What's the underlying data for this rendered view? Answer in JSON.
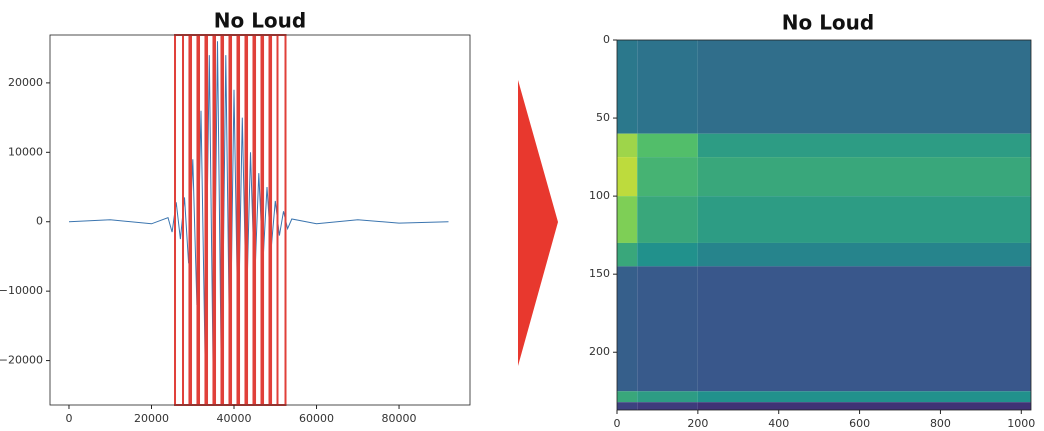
{
  "chart_data": [
    {
      "type": "line",
      "title": "No Loud",
      "x": [
        0,
        10000,
        20000,
        24000,
        25000,
        26000,
        27000,
        28000,
        29000,
        30000,
        31000,
        32000,
        33000,
        34000,
        35000,
        36000,
        37000,
        38000,
        39000,
        40000,
        41000,
        42000,
        43000,
        44000,
        45000,
        46000,
        47000,
        48000,
        49000,
        50000,
        51000,
        52000,
        53000,
        54000,
        60000,
        70000,
        80000,
        92000
      ],
      "values": [
        0,
        300,
        -300,
        600,
        -1500,
        2800,
        -2500,
        3500,
        -6000,
        9000,
        -12000,
        16000,
        -20000,
        24000,
        -25000,
        26000,
        -26000,
        24000,
        -22000,
        19000,
        -17000,
        15000,
        -13000,
        10000,
        -9000,
        7000,
        -6000,
        5000,
        -4000,
        3000,
        -2000,
        1500,
        -1000,
        400,
        -300,
        300,
        -200,
        0
      ],
      "color": "#3b75af",
      "frames": [
        [
          25700,
          29200
        ],
        [
          27640,
          31140
        ],
        [
          29580,
          33080
        ],
        [
          31520,
          35020
        ],
        [
          33460,
          36960
        ],
        [
          35400,
          38900
        ],
        [
          37340,
          40840
        ],
        [
          39280,
          42780
        ],
        [
          41220,
          44720
        ],
        [
          43160,
          46660
        ],
        [
          45100,
          48600
        ],
        [
          47040,
          50540
        ],
        [
          48980,
          52480
        ]
      ],
      "frame_color": "#e0403a",
      "xlim": [
        -4600,
        97200
      ],
      "xticks": [
        0,
        20000,
        40000,
        60000,
        80000
      ],
      "ylim": [
        -26400,
        26900
      ],
      "yticks": [
        {
          "value": -20000,
          "label": "−20000"
        },
        {
          "value": -10000,
          "label": "−10000"
        },
        0,
        10000,
        20000
      ]
    },
    {
      "type": "heatmap",
      "title": "No Loud",
      "x_edges": [
        0,
        50,
        200,
        1024
      ],
      "y_edges": [
        0,
        60,
        75,
        100,
        130,
        145,
        225,
        232,
        237
      ],
      "z": [
        [
          0.4,
          0.38,
          0.36
        ],
        [
          0.85,
          0.7,
          0.55
        ],
        [
          0.9,
          0.65,
          0.6
        ],
        [
          0.8,
          0.6,
          0.55
        ],
        [
          0.6,
          0.5,
          0.45
        ],
        [
          0.3,
          0.28,
          0.27
        ],
        [
          0.6,
          0.55,
          0.5
        ],
        [
          0.2,
          0.18,
          0.15
        ]
      ],
      "colormap": "viridis",
      "xlim": [
        0,
        1024
      ],
      "xticks": [
        0,
        200,
        400,
        600,
        800,
        1000
      ],
      "ylim": [
        0,
        237
      ],
      "invert_y": true,
      "yticks": [
        0,
        50,
        100,
        150,
        200
      ]
    }
  ]
}
